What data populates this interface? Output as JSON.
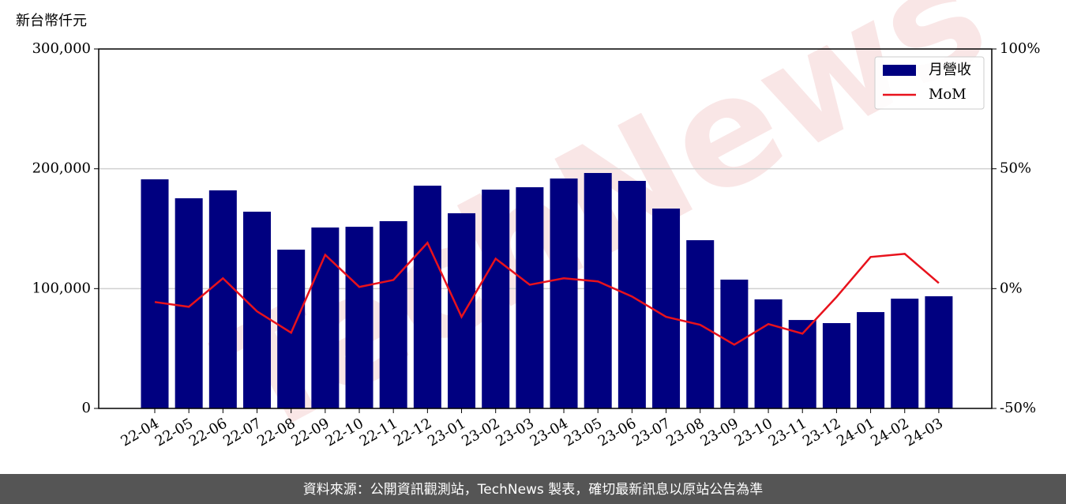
{
  "chart_data": {
    "type": "bar_line",
    "y_label": "新台幣仟元",
    "footer": "資料來源：公開資訊觀測站，TechNews 製表，確切最新訊息以原站公告為準",
    "watermark": "TechNews",
    "categories": [
      "22-04",
      "22-05",
      "22-06",
      "22-07",
      "22-08",
      "22-09",
      "22-10",
      "22-11",
      "22-12",
      "23-01",
      "23-02",
      "23-03",
      "23-04",
      "23-05",
      "23-06",
      "23-07",
      "23-08",
      "23-09",
      "23-10",
      "23-11",
      "23-12",
      "24-01",
      "24-02",
      "24-03"
    ],
    "series": [
      {
        "name": "月營收",
        "type": "bar",
        "color": "#000080",
        "values": [
          191200,
          175400,
          182000,
          164200,
          132500,
          151000,
          151600,
          156300,
          185900,
          162900,
          182600,
          184600,
          191900,
          196500,
          189900,
          166800,
          140400,
          107500,
          91000,
          73800,
          71200,
          80400,
          91600,
          93600
        ]
      },
      {
        "name": "MoM",
        "type": "line",
        "axis": "y2",
        "color": "#e8121c",
        "values": [
          -5.6,
          -7.6,
          4.3,
          -9.5,
          -18.4,
          14.1,
          0.7,
          3.6,
          19.1,
          -11.8,
          12.5,
          1.6,
          4.3,
          3.0,
          -3.3,
          -11.8,
          -15.1,
          -23.4,
          -14.8,
          -18.8,
          -3.5,
          13.2,
          14.5,
          2.3
        ]
      }
    ],
    "ylim": [
      0,
      300000
    ],
    "yticks": [
      0,
      {
        "value": 100000,
        "label": "100,000"
      },
      {
        "value": 200000,
        "label": "200,000"
      },
      {
        "value": 300000,
        "label": "300,000"
      }
    ],
    "y2lim": [
      -50,
      100
    ],
    "y2ticks": [
      {
        "value": -50,
        "label": "-50%"
      },
      {
        "value": 0,
        "label": "0%"
      },
      {
        "value": 50,
        "label": "50%"
      },
      {
        "value": 100,
        "label": "100%"
      }
    ],
    "grid": true,
    "legend": "upper right"
  }
}
